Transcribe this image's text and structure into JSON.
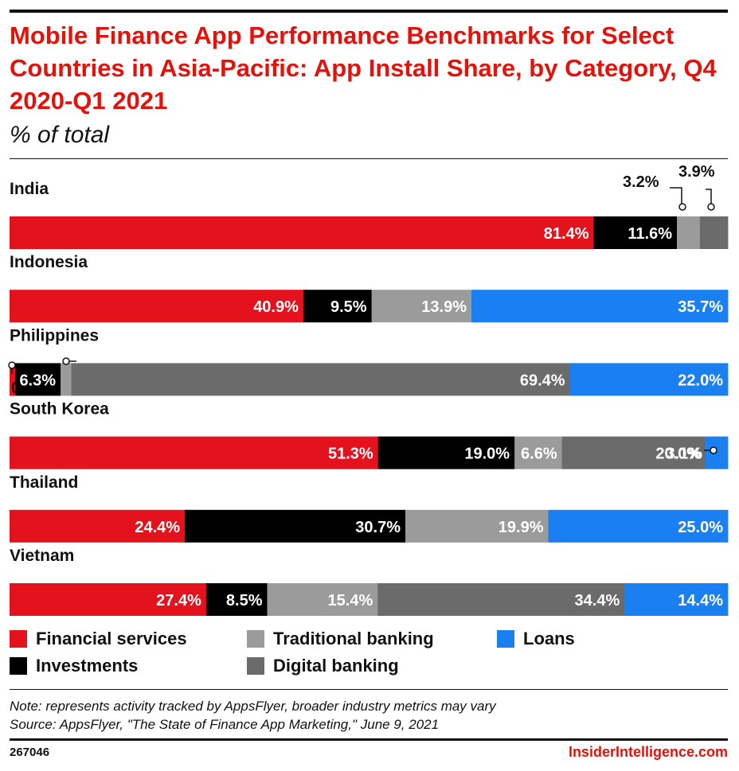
{
  "title": "Mobile Finance App Performance Benchmarks for Select Countries in Asia-Pacific: App Install Share, by Category, Q4 2020-Q1 2021",
  "subtitle": "% of total",
  "note": "Note: represents activity tracked by AppsFlyer, broader industry metrics may vary",
  "source": "Source: AppsFlyer, \"The State of Finance App Marketing,\" June 9, 2021",
  "chart_id": "267046",
  "brand": "InsiderIntelligence.com",
  "colors": {
    "financial": "#e3121d",
    "investments": "#000000",
    "traditional": "#9b9b9b",
    "digital": "#6b6b6b",
    "loans": "#1a7ff0",
    "title": "#e3120b"
  },
  "legend": [
    {
      "label": "Financial services",
      "key": "financial"
    },
    {
      "label": "Investments",
      "key": "investments"
    },
    {
      "label": "Traditional banking",
      "key": "traditional"
    },
    {
      "label": "Digital banking",
      "key": "digital"
    },
    {
      "label": "Loans",
      "key": "loans"
    }
  ],
  "chart_data": {
    "type": "bar",
    "orientation": "horizontal",
    "stacked": true,
    "unit": "%",
    "title": "Mobile Finance App Performance Benchmarks for Select Countries in Asia-Pacific: App Install Share, by Category, Q4 2020-Q1 2021",
    "subtitle": "% of total",
    "categories": [
      "India",
      "Indonesia",
      "Philippines",
      "South Korea",
      "Thailand",
      "Vietnam"
    ],
    "series": [
      {
        "name": "Financial services",
        "key": "financial",
        "values": [
          81.4,
          40.9,
          0.8,
          51.3,
          24.4,
          27.4
        ]
      },
      {
        "name": "Investments",
        "key": "investments",
        "values": [
          11.6,
          9.5,
          6.3,
          19.0,
          30.7,
          8.5
        ]
      },
      {
        "name": "Traditional banking",
        "key": "traditional",
        "values": [
          3.2,
          13.9,
          1.5,
          6.6,
          19.9,
          15.4
        ]
      },
      {
        "name": "Digital banking",
        "key": "digital",
        "values": [
          3.9,
          null,
          69.4,
          20.0,
          null,
          34.4
        ]
      },
      {
        "name": "Loans",
        "key": "loans",
        "values": [
          null,
          35.7,
          22.0,
          3.1,
          25.0,
          14.4
        ]
      }
    ],
    "legend_position": "bottom",
    "grid": false
  }
}
